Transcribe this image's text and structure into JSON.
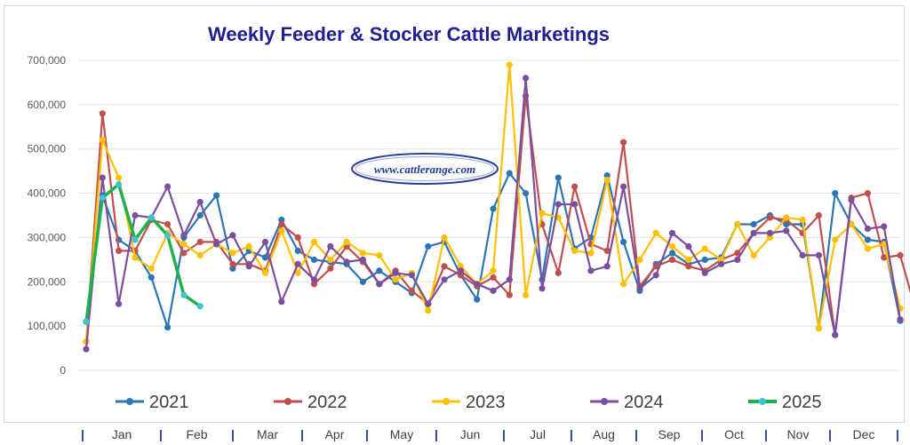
{
  "chart_data": {
    "type": "line",
    "title": "Weekly Feeder & Stocker Cattle Marketings",
    "title_color": "#1f1f8f",
    "watermark": "www.cattlerange.com",
    "ylim": [
      0,
      700000
    ],
    "yticks": [
      0,
      100000,
      200000,
      300000,
      400000,
      500000,
      600000,
      700000
    ],
    "ytick_labels": [
      "0",
      "100,000",
      "200,000",
      "300,000",
      "400,000",
      "500,000",
      "600,000",
      "700,000"
    ],
    "months": [
      "Jan",
      "Feb",
      "Mar",
      "Apr",
      "May",
      "Jun",
      "Jul",
      "Aug",
      "Sep",
      "Oct",
      "Nov",
      "Dec"
    ],
    "month_separator": "|",
    "legend_position": "bottom",
    "grid": "horizontal",
    "series": [
      {
        "name": "2021",
        "color": "#2e75b6",
        "values": [
          110000,
          395000,
          295000,
          270000,
          210000,
          97000,
          300000,
          350000,
          395000,
          230000,
          270000,
          255000,
          340000,
          270000,
          250000,
          245000,
          240000,
          200000,
          225000,
          200000,
          175000,
          280000,
          290000,
          215000,
          160000,
          365000,
          445000,
          400000,
          205000,
          435000,
          275000,
          300000,
          440000,
          290000,
          180000,
          240000,
          265000,
          240000,
          250000,
          255000,
          330000,
          330000,
          350000,
          330000,
          330000,
          95000,
          400000,
          330000,
          295000,
          290000,
          112000
        ]
      },
      {
        "name": "2022",
        "color": "#c0504d",
        "values": [
          65000,
          580000,
          270000,
          270000,
          340000,
          330000,
          265000,
          290000,
          290000,
          240000,
          240000,
          225000,
          330000,
          300000,
          195000,
          230000,
          280000,
          245000,
          195000,
          225000,
          180000,
          150000,
          235000,
          215000,
          190000,
          210000,
          170000,
          620000,
          330000,
          220000,
          415000,
          285000,
          270000,
          515000,
          190000,
          235000,
          250000,
          235000,
          225000,
          250000,
          265000,
          310000,
          345000,
          340000,
          310000,
          350000,
          80000,
          390000,
          400000,
          255000,
          260000,
          130000
        ]
      },
      {
        "name": "2023",
        "color": "#ffc000",
        "values": [
          65000,
          520000,
          435000,
          255000,
          230000,
          310000,
          285000,
          260000,
          285000,
          265000,
          280000,
          220000,
          315000,
          220000,
          290000,
          250000,
          290000,
          265000,
          260000,
          205000,
          220000,
          135000,
          300000,
          235000,
          195000,
          225000,
          690000,
          170000,
          355000,
          345000,
          270000,
          265000,
          430000,
          195000,
          250000,
          310000,
          280000,
          250000,
          275000,
          250000,
          330000,
          260000,
          300000,
          345000,
          340000,
          95000,
          295000,
          330000,
          275000,
          285000,
          140000
        ]
      },
      {
        "name": "2024",
        "color": "#7b4fa0",
        "values": [
          48000,
          435000,
          150000,
          350000,
          345000,
          415000,
          305000,
          380000,
          285000,
          305000,
          235000,
          290000,
          155000,
          240000,
          205000,
          280000,
          245000,
          250000,
          195000,
          220000,
          215000,
          150000,
          205000,
          225000,
          195000,
          180000,
          205000,
          660000,
          185000,
          375000,
          375000,
          225000,
          235000,
          415000,
          185000,
          215000,
          310000,
          280000,
          220000,
          240000,
          250000,
          310000,
          310000,
          315000,
          260000,
          260000,
          80000,
          385000,
          320000,
          325000,
          115000
        ]
      },
      {
        "name": "2025",
        "color": "#1fb14b",
        "marker_color": "#3fc3d5",
        "values": [
          110000,
          390000,
          420000,
          295000,
          345000,
          305000,
          170000,
          145000
        ]
      }
    ]
  }
}
